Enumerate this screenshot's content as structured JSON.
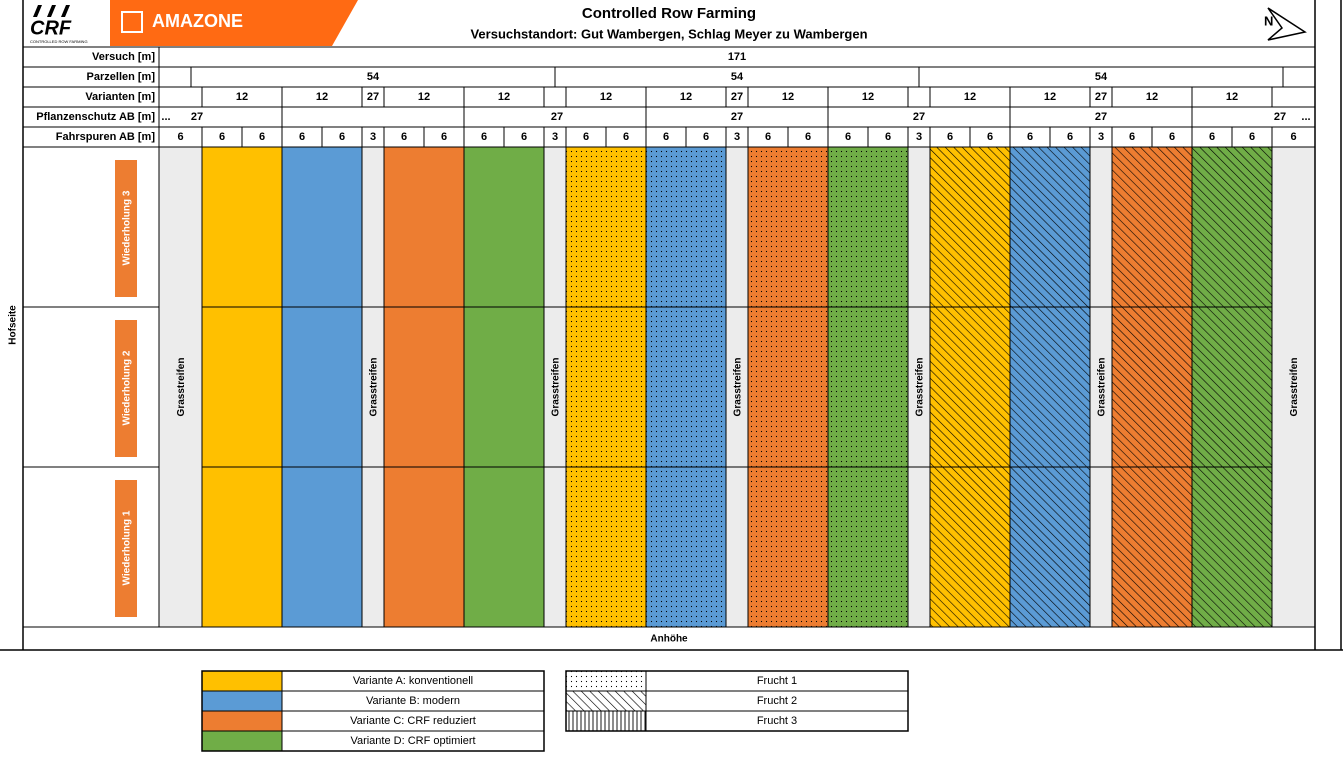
{
  "header": {
    "logo_crf": "CRF",
    "logo_crf_sub": "CONTROLLED ROW FARMING",
    "logo_amazone": "AMAZONE",
    "title": "Controlled Row Farming",
    "subtitle": "Versuchstandort: Gut Wambergen, Schlag Meyer zu Wambergen",
    "north": "N"
  },
  "rows": {
    "labels": [
      "Versuch [m]",
      "Parzellen  [m]",
      "Varianten [m]",
      "Pflanzenschutz AB [m]",
      "Fahrspuren AB [m]"
    ],
    "versuch": [
      171
    ],
    "parzellen": [
      54,
      54,
      54
    ],
    "varianten": [
      12,
      12,
      27,
      12,
      12,
      12,
      12,
      27,
      12,
      12,
      12,
      12,
      27,
      12,
      12
    ],
    "pflanzenschutz": [
      "...",
      27,
      27,
      27,
      27,
      27,
      27,
      "..."
    ],
    "fahrspuren": [
      6,
      6,
      6,
      6,
      6,
      3,
      6,
      6,
      6,
      6,
      3,
      6,
      6,
      6,
      6,
      3,
      6,
      6,
      6,
      6,
      3,
      6,
      6,
      6,
      6,
      3,
      6,
      6,
      6,
      6,
      6
    ]
  },
  "side_label": "Hofseite",
  "repetitions": [
    "Wiederholung 3",
    "Wiederholung 2",
    "Wiederholung 1"
  ],
  "strip_labels": [
    "Grasstreifen",
    "Grasstreifen",
    "Grasstreifen",
    "Grasstreifen",
    "Grasstreifen",
    "Grasstreifen",
    "Grasstreifen"
  ],
  "bottom_label": "Anhöhe",
  "legend": {
    "variants": [
      {
        "label": "Variante A:  konventionell",
        "color": "#ffc000"
      },
      {
        "label": "Variante B: modern",
        "color": "#5b9bd5"
      },
      {
        "label": "Variante C: CRF reduziert",
        "color": "#ed7d31"
      },
      {
        "label": "Variante D: CRF optimiert",
        "color": "#70ad47"
      }
    ],
    "crops": [
      {
        "label": "Frucht 1",
        "pattern": "dots"
      },
      {
        "label": "Frucht 2",
        "pattern": "diagonal"
      },
      {
        "label": "Frucht 3",
        "pattern": "vertical"
      }
    ]
  }
}
